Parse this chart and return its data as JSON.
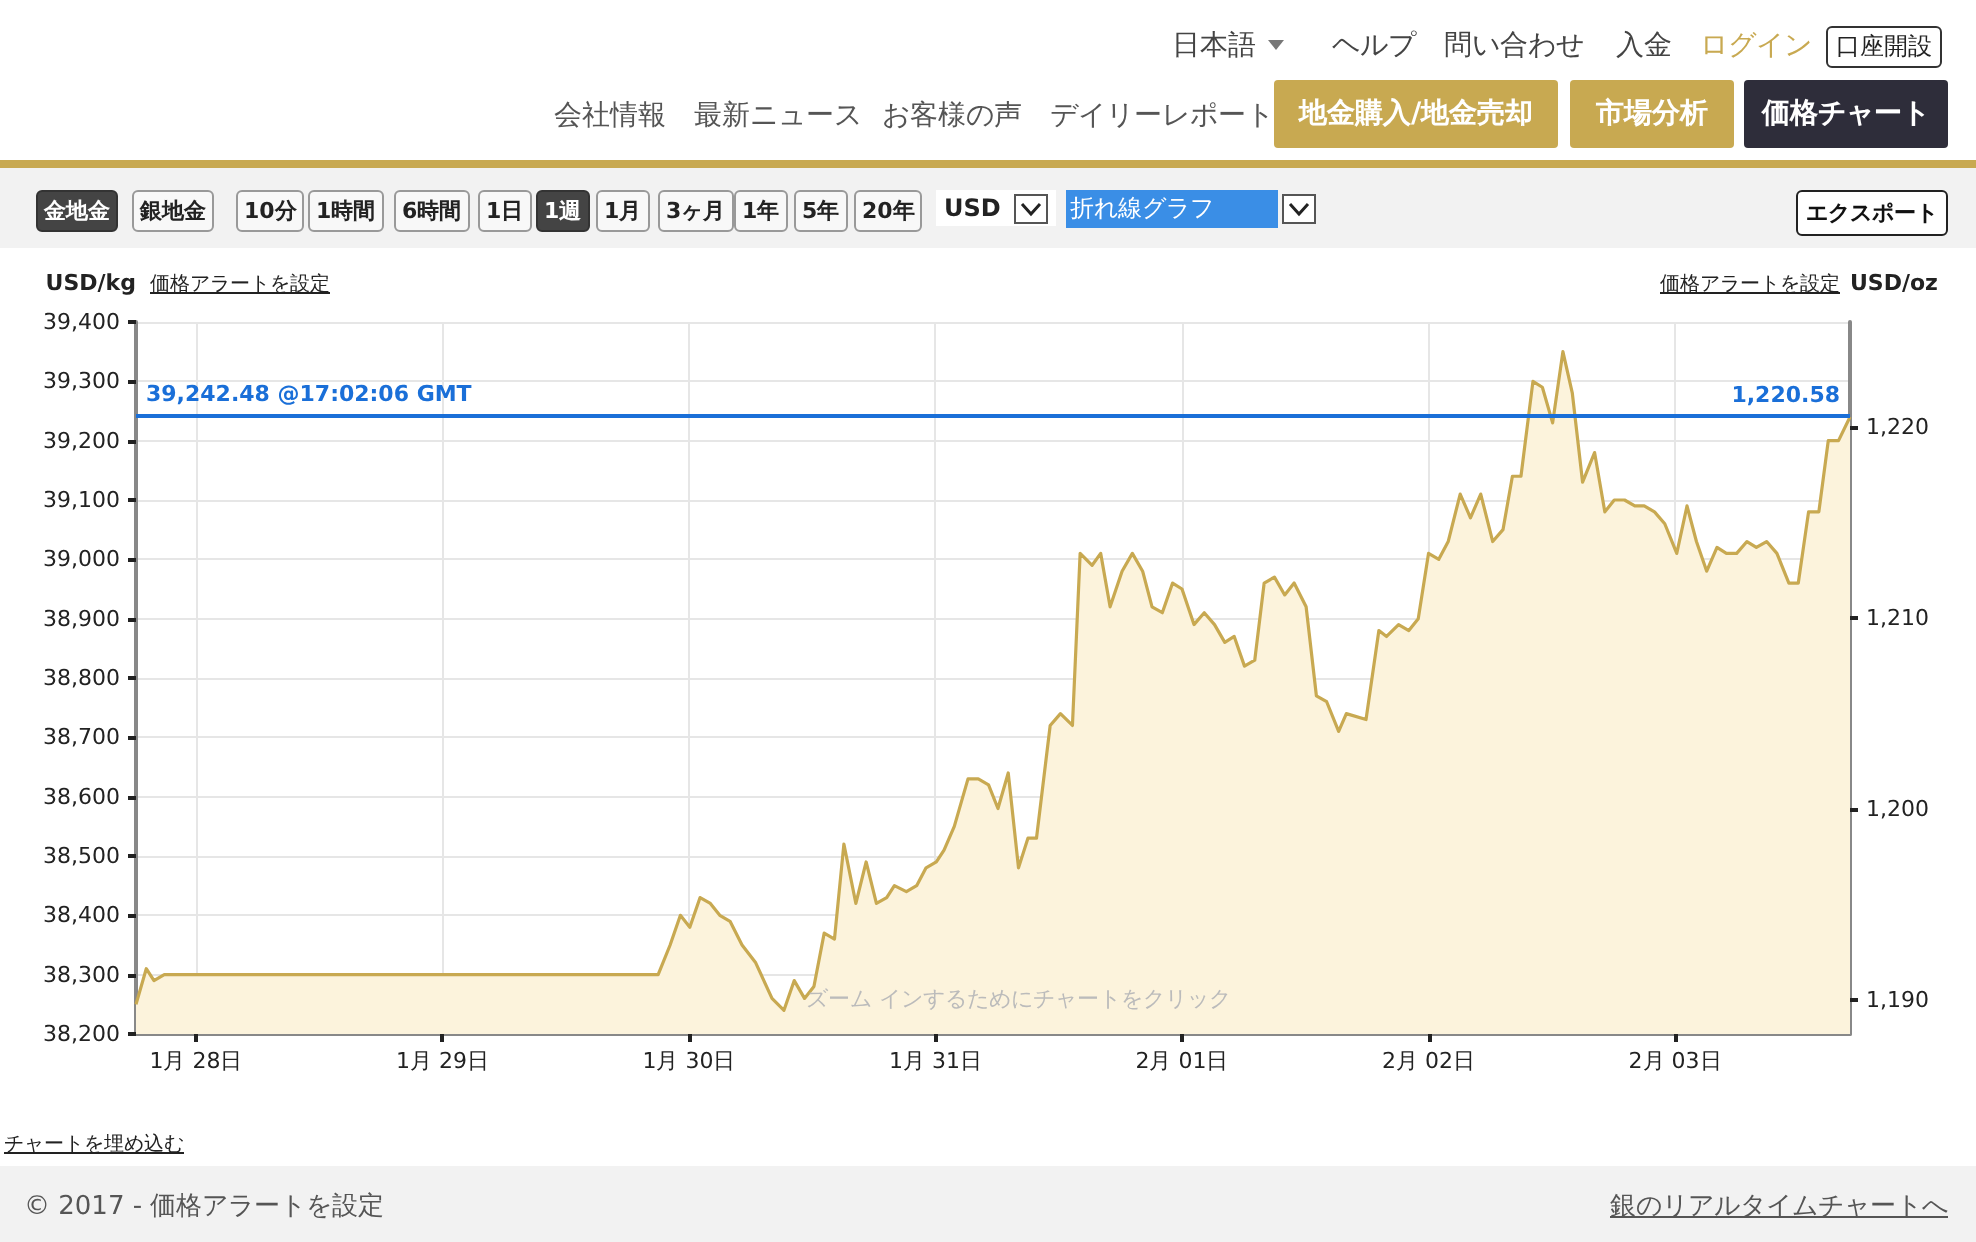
{
  "chart_data": {
    "type": "area",
    "ylabel": "USD/kg",
    "y2label": "USD/oz",
    "color": "#c8a951",
    "grid": true,
    "marker": "none",
    "xlim": [
      "2017-01-27T18:10",
      "2017-02-03T17:02"
    ],
    "xticks": [
      {
        "value": "2017-01-28T00:00",
        "label": "1月 28日"
      },
      {
        "value": "2017-01-29T00:00",
        "label": "1月 29日"
      },
      {
        "value": "2017-01-30T00:00",
        "label": "1月 30日"
      },
      {
        "value": "2017-01-31T00:00",
        "label": "1月 31日"
      },
      {
        "value": "2017-02-01T00:00",
        "label": "2月 01日"
      },
      {
        "value": "2017-02-02T00:00",
        "label": "2月 02日"
      },
      {
        "value": "2017-02-03T00:00",
        "label": "2月 03日"
      }
    ],
    "ylim": [
      38200,
      39400
    ],
    "yticks": [
      {
        "value": 38200,
        "label": "38,200"
      },
      {
        "value": 38300,
        "label": "38,300"
      },
      {
        "value": 38400,
        "label": "38,400"
      },
      {
        "value": 38500,
        "label": "38,500"
      },
      {
        "value": 38600,
        "label": "38,600"
      },
      {
        "value": 38700,
        "label": "38,700"
      },
      {
        "value": 38800,
        "label": "38,800"
      },
      {
        "value": 38900,
        "label": "38,900"
      },
      {
        "value": 39000,
        "label": "39,000"
      },
      {
        "value": 39100,
        "label": "39,100"
      },
      {
        "value": 39200,
        "label": "39,200"
      },
      {
        "value": 39300,
        "label": "39,300"
      },
      {
        "value": 39400,
        "label": "39,400"
      }
    ],
    "y2lim": [
      1188.2,
      1225.5
    ],
    "y2ticks": [
      {
        "value": 1190,
        "label": "1,190"
      },
      {
        "value": 1200,
        "label": "1,200"
      },
      {
        "value": 1210,
        "label": "1,210"
      },
      {
        "value": 1220,
        "label": "1,220"
      }
    ],
    "ref_lines": [
      {
        "axis": "y",
        "value": 39242.48,
        "label": "39,242.48 @17:02:06 GMT",
        "color": "#1a6fd8"
      },
      {
        "axis": "y2",
        "value": 1220.58,
        "label": "1,220.58",
        "color": "#1a6fd8"
      }
    ],
    "x": [
      "2017-01-27T18:10",
      "2017-01-27T19:10",
      "2017-01-27T19:55",
      "2017-01-27T20:55",
      "2017-01-29T21:00",
      "2017-01-29T22:10",
      "2017-01-29T23:10",
      "2017-01-30T00:05",
      "2017-01-30T01:05",
      "2017-01-30T02:05",
      "2017-01-30T03:00",
      "2017-01-30T04:00",
      "2017-01-30T05:10",
      "2017-01-30T06:30",
      "2017-01-30T08:05",
      "2017-01-30T09:15",
      "2017-01-30T10:15",
      "2017-01-30T11:15",
      "2017-01-30T12:10",
      "2017-01-30T13:10",
      "2017-01-30T14:10",
      "2017-01-30T15:05",
      "2017-01-30T16:15",
      "2017-01-30T17:15",
      "2017-01-30T18:15",
      "2017-01-30T19:15",
      "2017-01-30T20:00",
      "2017-01-30T21:10",
      "2017-01-30T22:10",
      "2017-01-30T23:05",
      "2017-01-31T00:05",
      "2017-01-31T00:50",
      "2017-01-31T01:50",
      "2017-01-31T03:10",
      "2017-01-31T04:10",
      "2017-01-31T05:10",
      "2017-01-31T06:05",
      "2017-01-31T07:05",
      "2017-01-31T08:05",
      "2017-01-31T09:00",
      "2017-01-31T09:50",
      "2017-01-31T11:10",
      "2017-01-31T12:10",
      "2017-01-31T13:20",
      "2017-01-31T14:05",
      "2017-01-31T15:15",
      "2017-01-31T16:05",
      "2017-01-31T17:00",
      "2017-01-31T18:10",
      "2017-01-31T19:10",
      "2017-01-31T20:10",
      "2017-01-31T21:05",
      "2017-01-31T22:05",
      "2017-01-31T23:05",
      "2017-02-01T00:00",
      "2017-02-01T01:10",
      "2017-02-01T02:10",
      "2017-02-01T03:10",
      "2017-02-01T04:10",
      "2017-02-01T05:05",
      "2017-02-01T06:05",
      "2017-02-01T07:05",
      "2017-02-01T08:00",
      "2017-02-01T09:00",
      "2017-02-01T10:00",
      "2017-02-01T10:55",
      "2017-02-01T12:05",
      "2017-02-01T13:05",
      "2017-02-01T14:05",
      "2017-02-01T15:15",
      "2017-02-01T16:00",
      "2017-02-01T17:55",
      "2017-02-01T19:10",
      "2017-02-01T19:55",
      "2017-02-01T21:05",
      "2017-02-01T22:05",
      "2017-02-01T23:00",
      "2017-02-02T00:00",
      "2017-02-02T01:00",
      "2017-02-02T01:55",
      "2017-02-02T03:05",
      "2017-02-02T04:05",
      "2017-02-02T05:05",
      "2017-02-02T06:15",
      "2017-02-02T07:15",
      "2017-02-02T08:10",
      "2017-02-02T09:00",
      "2017-02-02T10:10",
      "2017-02-02T11:05",
      "2017-02-02T12:05",
      "2017-02-02T13:05",
      "2017-02-02T14:00",
      "2017-02-02T15:00",
      "2017-02-02T16:10",
      "2017-02-02T17:10",
      "2017-02-02T18:05",
      "2017-02-02T19:05",
      "2017-02-02T20:05",
      "2017-02-02T21:00",
      "2017-02-02T22:00",
      "2017-02-02T23:00",
      "2017-02-03T00:10",
      "2017-02-03T01:10",
      "2017-02-03T02:05",
      "2017-02-03T03:05",
      "2017-02-03T04:05",
      "2017-02-03T05:00",
      "2017-02-03T06:00",
      "2017-02-03T07:00",
      "2017-02-03T07:55",
      "2017-02-03T08:55",
      "2017-02-03T09:55",
      "2017-02-03T11:05",
      "2017-02-03T12:00",
      "2017-02-03T13:00",
      "2017-02-03T14:00",
      "2017-02-03T14:55",
      "2017-02-03T15:55",
      "2017-02-03T17:02"
    ],
    "values": [
      38250,
      38310,
      38290,
      38300,
      38300,
      38350,
      38400,
      38380,
      38430,
      38420,
      38400,
      38390,
      38350,
      38320,
      38260,
      38240,
      38290,
      38260,
      38280,
      38370,
      38360,
      38520,
      38420,
      38490,
      38420,
      38430,
      38450,
      38440,
      38450,
      38480,
      38490,
      38510,
      38550,
      38630,
      38630,
      38620,
      38580,
      38640,
      38480,
      38530,
      38530,
      38720,
      38740,
      38720,
      39010,
      38990,
      39010,
      38920,
      38980,
      39010,
      38980,
      38920,
      38910,
      38960,
      38950,
      38890,
      38910,
      38890,
      38860,
      38870,
      38820,
      38830,
      38960,
      38970,
      38940,
      38960,
      38920,
      38770,
      38760,
      38710,
      38740,
      38730,
      38880,
      38870,
      38890,
      38880,
      38900,
      39010,
      39000,
      39030,
      39110,
      39070,
      39110,
      39030,
      39050,
      39140,
      39140,
      39300,
      39290,
      39230,
      39350,
      39280,
      39130,
      39180,
      39080,
      39100,
      39100,
      39090,
      39090,
      39080,
      39060,
      39010,
      39090,
      39030,
      38980,
      39020,
      39010,
      39010,
      39030,
      39020,
      39030,
      39010,
      38960,
      38960,
      39080,
      39080,
      39200,
      39200,
      39240
    ],
    "annotations": [
      "日本語",
      "ヘルプ",
      "問い合わせ",
      "入金",
      "ログイン",
      "口座開設",
      "会社情報",
      "最新ニュース",
      "お客様の声",
      "デイリーレポート",
      "地金購入/地金売却",
      "市場分析",
      "価格チャート",
      "金地金",
      "銀地金",
      "10分",
      "1時間",
      "6時間",
      "1日",
      "1週",
      "1月",
      "3ヶ月",
      "1年",
      "5年",
      "20年",
      "USD",
      "折れ線グラフ",
      "エクスポート",
      "価格アラートを設定",
      "価格アラートを設定",
      "ズーム インするためにチャートをクリック",
      "チャートを埋め込む",
      "© 2017 - 価格アラートを設定",
      "銀のリアルタイムチャートへ"
    ]
  }
}
